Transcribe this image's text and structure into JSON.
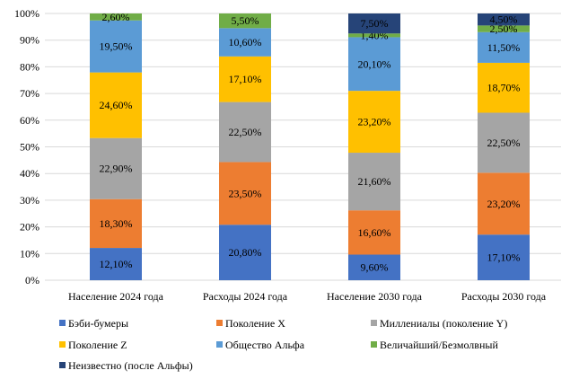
{
  "chart_data": {
    "type": "bar",
    "stacked": true,
    "ylim": [
      0,
      100
    ],
    "yticks": [
      "0%",
      "10%",
      "20%",
      "30%",
      "40%",
      "50%",
      "60%",
      "70%",
      "80%",
      "90%",
      "100%"
    ],
    "categories": [
      "Население 2024 года",
      "Расходы 2024 года",
      "Население 2030 года",
      "Расходы 2030 года"
    ],
    "series": [
      {
        "name": "Бэби-бумеры",
        "color": "#4472C4",
        "values": [
          12.1,
          20.8,
          9.6,
          17.1
        ],
        "labels": [
          "12,10%",
          "20,80%",
          "9,60%",
          "17,10%"
        ]
      },
      {
        "name": "Поколение X",
        "color": "#ED7D31",
        "values": [
          18.3,
          23.5,
          16.6,
          23.2
        ],
        "labels": [
          "18,30%",
          "23,50%",
          "16,60%",
          "23,20%"
        ]
      },
      {
        "name": "Миллениалы (поколение Y)",
        "color": "#A5A5A5",
        "values": [
          22.9,
          22.5,
          21.6,
          22.5
        ],
        "labels": [
          "22,90%",
          "22,50%",
          "21,60%",
          "22,50%"
        ]
      },
      {
        "name": "Поколение Z",
        "color": "#FFC000",
        "values": [
          24.6,
          17.1,
          23.2,
          18.7
        ],
        "labels": [
          "24,60%",
          "17,10%",
          "23,20%",
          "18,70%"
        ]
      },
      {
        "name": "Общество Альфа",
        "color": "#5B9BD5",
        "values": [
          19.5,
          10.6,
          20.1,
          11.5
        ],
        "labels": [
          "19,50%",
          "10,60%",
          "20,10%",
          "11,50%"
        ]
      },
      {
        "name": "Величайший/Безмолвный",
        "color": "#70AD47",
        "values": [
          2.6,
          5.5,
          1.4,
          2.5
        ],
        "labels": [
          "2,60%",
          "5,50%",
          "1,40%",
          "2,50%"
        ]
      },
      {
        "name": "Неизвестно (после Альфы)",
        "color": "#264478",
        "values": [
          0,
          0,
          7.5,
          4.5
        ],
        "labels": [
          "",
          "",
          "7,50%",
          "4,50%"
        ]
      }
    ],
    "legend_position": "bottom",
    "grid": true
  }
}
